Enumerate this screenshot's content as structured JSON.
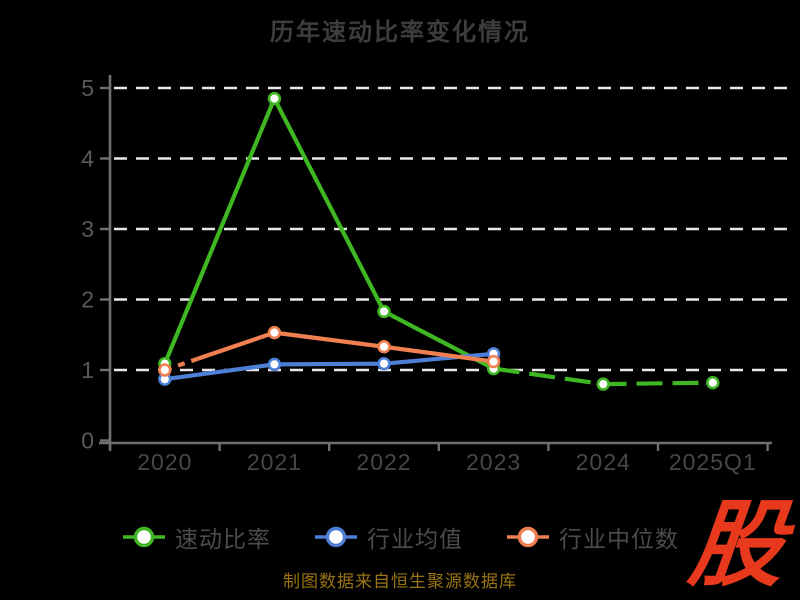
{
  "title": "历年速动比率变化情况",
  "footer": {
    "text": "制图数据来自恒生聚源数据库",
    "color": "#9a7414"
  },
  "logo": {
    "text": "股",
    "color": "#e8391d"
  },
  "colors": {
    "background": "#000000",
    "grid": "#e8e8e8",
    "axis": "#707070",
    "y_tick_label": "#5a5a5a",
    "x_tick_label": "#474747",
    "title": "#3d3d3d",
    "legend_text": "#4b4b4b",
    "marker_fill": "#ffffff"
  },
  "chart_data": {
    "type": "line",
    "title": "历年速动比率变化情况",
    "categories": [
      "2020",
      "2021",
      "2022",
      "2023",
      "2024",
      "2025Q1"
    ],
    "series": [
      {
        "name": "速动比率",
        "color": "#3fb722",
        "values": [
          1.09,
          4.85,
          1.83,
          1.02,
          0.8,
          0.82
        ],
        "dashed_tail_points": 2
      },
      {
        "name": "行业均值",
        "color": "#4d7fd6",
        "values": [
          0.87,
          1.08,
          1.09,
          1.23
        ]
      },
      {
        "name": "行业中位数",
        "color": "#f08051",
        "values": [
          1.0,
          1.53,
          1.33,
          1.12
        ],
        "dashed_head": true
      }
    ],
    "y_ticks": [
      0,
      1,
      2,
      3,
      4,
      5
    ],
    "ylim": [
      0,
      5
    ],
    "grid": "horizontal-dashed-white",
    "legend_position": "bottom",
    "marker": "circle-white-fill-colored-ring"
  }
}
